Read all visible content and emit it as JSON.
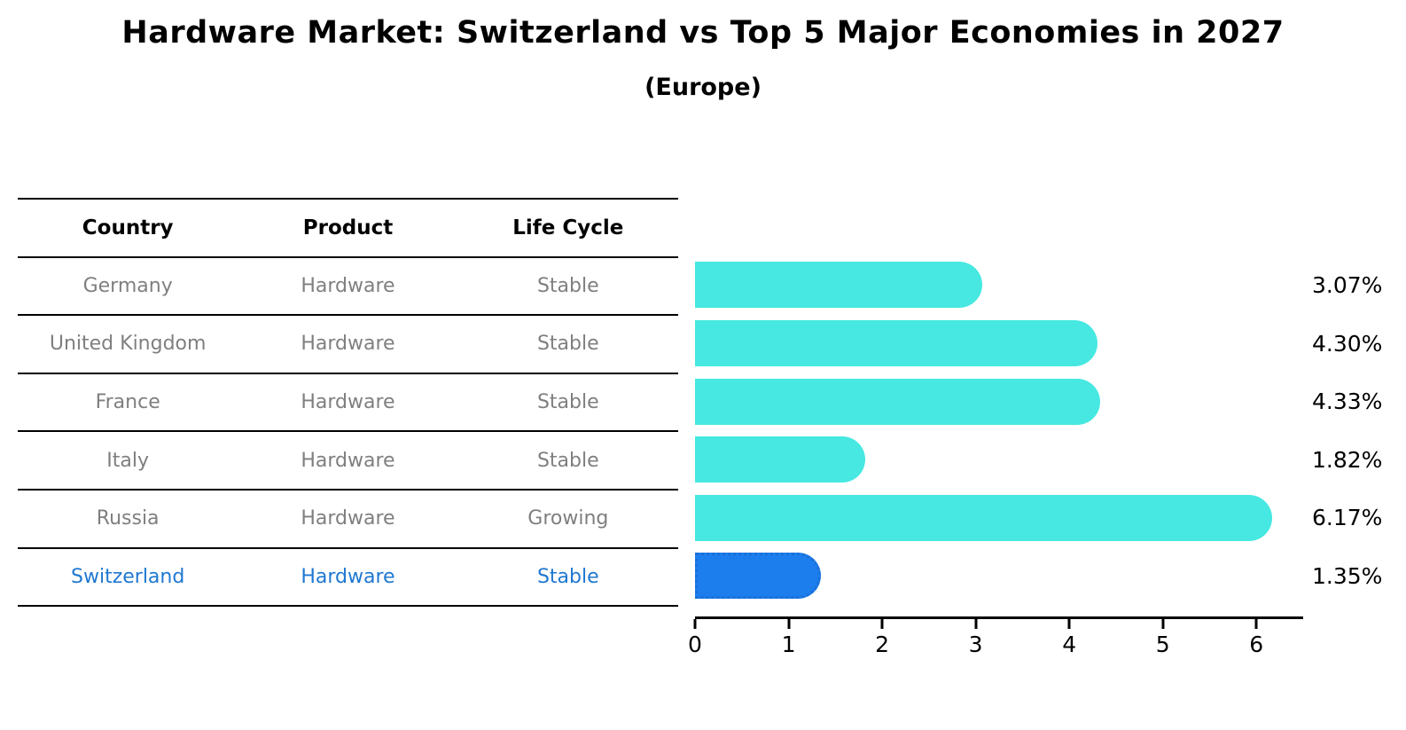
{
  "chart_data": {
    "type": "bar",
    "orientation": "horizontal",
    "title": "Hardware Market: Switzerland vs Top 5 Major Economies in 2027",
    "subtitle": "(Europe)",
    "xlim": [
      0,
      6.5
    ],
    "x_ticks": [
      "0",
      "1",
      "2",
      "3",
      "4",
      "5",
      "6"
    ],
    "grid": false,
    "legend": "none",
    "table_columns": [
      "Country",
      "Product",
      "Life Cycle"
    ],
    "rows": [
      {
        "country": "Germany",
        "product": "Hardware",
        "life_cycle": "Stable",
        "value": 3.07,
        "label": "3.07%",
        "highlight": false
      },
      {
        "country": "United Kingdom",
        "product": "Hardware",
        "life_cycle": "Stable",
        "value": 4.3,
        "label": "4.30%",
        "highlight": false
      },
      {
        "country": "France",
        "product": "Hardware",
        "life_cycle": "Stable",
        "value": 4.33,
        "label": "4.33%",
        "highlight": false
      },
      {
        "country": "Italy",
        "product": "Hardware",
        "life_cycle": "Stable",
        "value": 1.82,
        "label": "1.82%",
        "highlight": false
      },
      {
        "country": "Russia",
        "product": "Hardware",
        "life_cycle": "Growing",
        "value": 6.17,
        "label": "6.17%",
        "highlight": false
      },
      {
        "country": "Switzerland",
        "product": "Hardware",
        "life_cycle": "Stable",
        "value": 1.35,
        "label": "1.35%",
        "highlight": true
      }
    ],
    "colors": {
      "bar": "#46e8e1",
      "highlight_bar": "#1c7ded",
      "highlight_border": "#1a6fd8",
      "row_text": "#7f7f7f",
      "highlight_text": "#1f78d1",
      "header_text": "#000000",
      "axis": "#000000"
    }
  }
}
